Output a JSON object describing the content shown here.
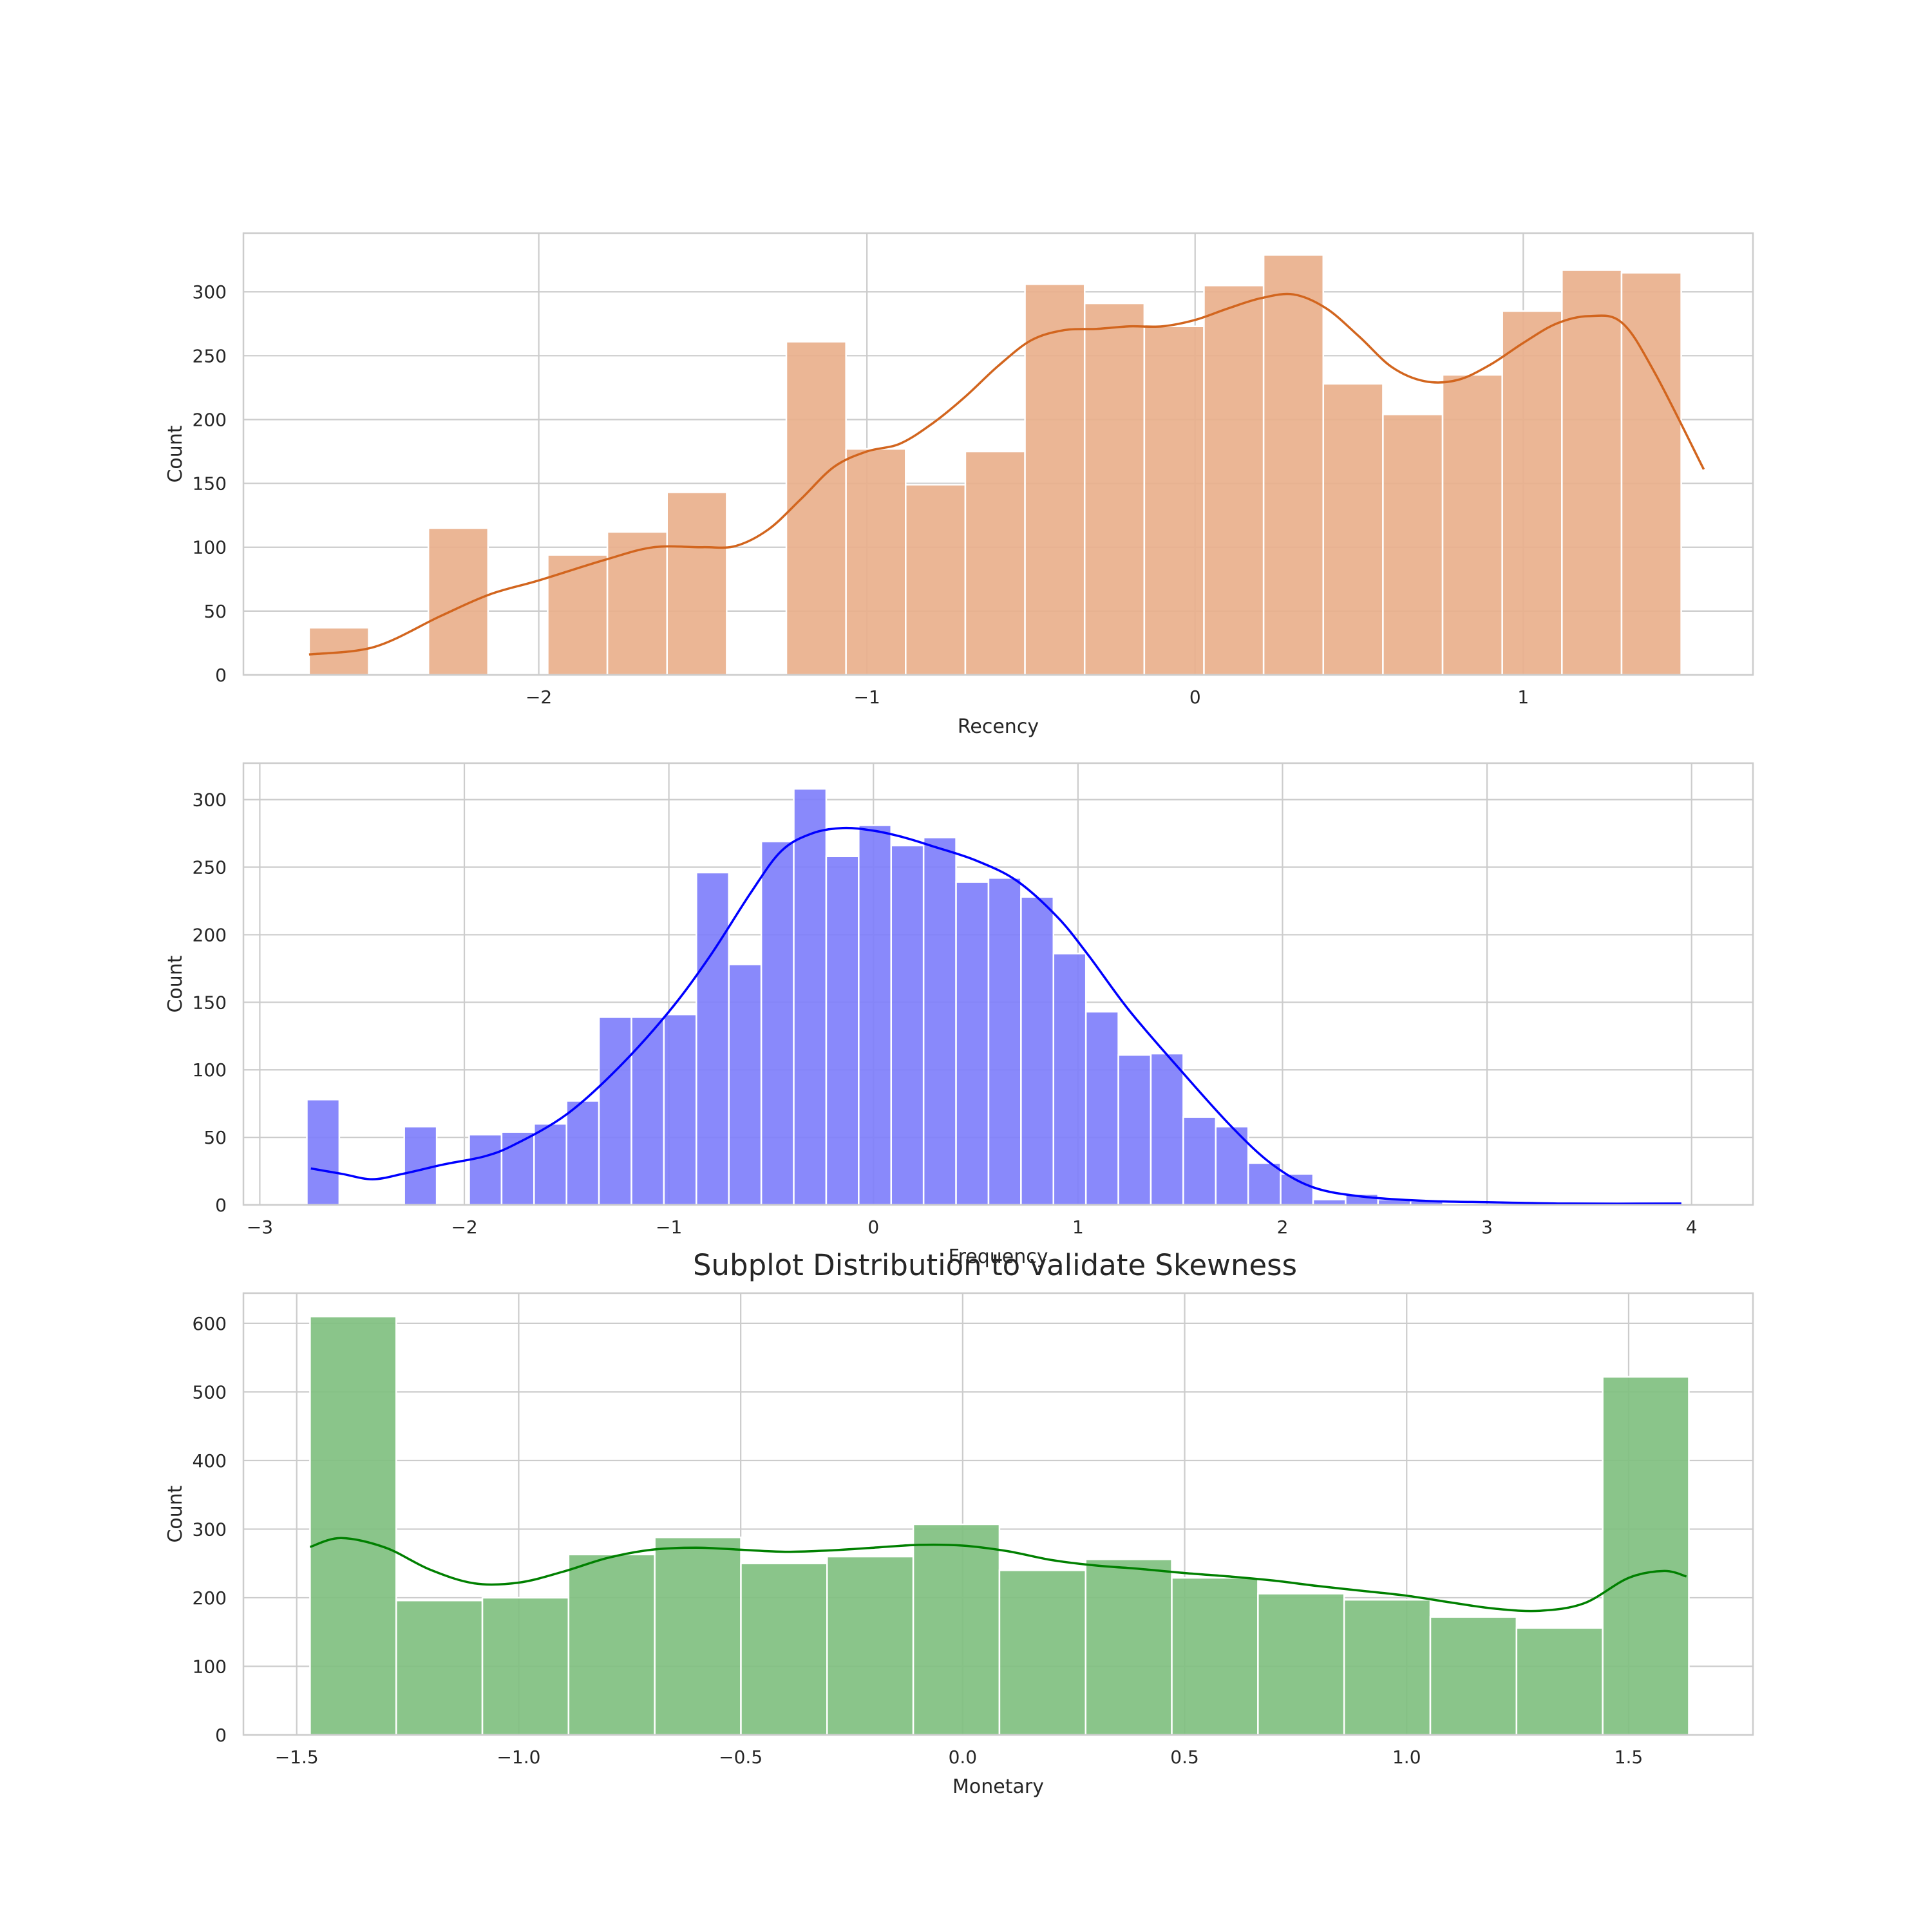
{
  "title": "Subplot Distribution to validate Skewness",
  "chart_data": [
    {
      "type": "bar",
      "subtype": "histogram-with-kde",
      "xlabel": "Recency",
      "ylabel": "Count",
      "color": "#e9b08c",
      "kde_color": "#d2651e",
      "xlim": [
        -2.9,
        1.7
      ],
      "ylim": [
        0,
        346
      ],
      "xticks": [
        -2,
        -1,
        0,
        1
      ],
      "xtick_labels": [
        "−2",
        "−1",
        "0",
        "1"
      ],
      "yticks": [
        0,
        50,
        100,
        150,
        200,
        250,
        300
      ],
      "bin_width": 0.1818,
      "bin_start": -2.7,
      "counts": [
        37,
        0,
        115,
        0,
        94,
        112,
        143,
        0,
        261,
        177,
        149,
        175,
        306,
        291,
        273,
        305,
        329,
        228,
        204,
        235,
        285,
        317,
        315
      ],
      "kde": {
        "x": [
          -2.7,
          -2.5,
          -2.3,
          -2.15,
          -2.0,
          -1.8,
          -1.65,
          -1.5,
          -1.4,
          -1.3,
          -1.2,
          -1.1,
          -1.0,
          -0.9,
          -0.8,
          -0.7,
          -0.6,
          -0.5,
          -0.4,
          -0.3,
          -0.2,
          -0.1,
          0.0,
          0.1,
          0.2,
          0.3,
          0.4,
          0.5,
          0.6,
          0.7,
          0.8,
          0.9,
          1.0,
          1.1,
          1.2,
          1.3,
          1.4,
          1.55
        ],
        "y": [
          16,
          22,
          46,
          63,
          74,
          90,
          100,
          100,
          101,
          114,
          138,
          163,
          175,
          181,
          197,
          218,
          242,
          262,
          270,
          271,
          273,
          273,
          278,
          287,
          295,
          298,
          287,
          265,
          241,
          230,
          231,
          243,
          260,
          275,
          281,
          276,
          237,
          161
        ]
      }
    },
    {
      "type": "bar",
      "subtype": "histogram-with-kde",
      "xlabel": "Frequency",
      "ylabel": "Count",
      "color": "#7f7ffb",
      "kde_color": "#0000ff",
      "xlim": [
        -3.08,
        4.3
      ],
      "ylim": [
        0,
        327
      ],
      "xticks": [
        -3,
        -2,
        -1,
        0,
        1,
        2,
        3,
        4
      ],
      "xtick_labels": [
        "−3",
        "−2",
        "−1",
        "0",
        "1",
        "2",
        "3",
        "4"
      ],
      "yticks": [
        0,
        50,
        100,
        150,
        200,
        250,
        300
      ],
      "bin_width": 0.1587,
      "bin_start": -2.77,
      "counts": [
        78,
        0,
        0,
        58,
        0,
        52,
        54,
        60,
        77,
        139,
        139,
        141,
        246,
        178,
        269,
        308,
        258,
        281,
        266,
        272,
        239,
        242,
        228,
        186,
        143,
        111,
        112,
        65,
        58,
        31,
        23,
        4,
        8,
        4,
        3,
        0,
        0,
        0,
        0,
        0,
        0,
        0,
        0,
        0
      ],
      "kde": {
        "x": [
          -2.75,
          -2.6,
          -2.45,
          -2.3,
          -2.1,
          -1.9,
          -1.75,
          -1.5,
          -1.25,
          -1.0,
          -0.8,
          -0.6,
          -0.45,
          -0.3,
          -0.15,
          0.0,
          0.15,
          0.3,
          0.5,
          0.7,
          0.9,
          1.05,
          1.25,
          1.5,
          1.75,
          1.95,
          2.15,
          2.4,
          2.7,
          3.0,
          3.4,
          3.95
        ],
        "y": [
          27,
          23,
          19,
          23,
          30,
          36,
          45,
          67,
          101,
          143,
          184,
          231,
          262,
          275,
          279,
          277,
          272,
          265,
          255,
          240,
          213,
          185,
          144,
          100,
          58,
          30,
          13,
          6,
          3,
          2,
          1,
          1
        ]
      }
    },
    {
      "type": "bar",
      "subtype": "histogram-with-kde",
      "xlabel": "Monetary",
      "ylabel": "Count",
      "color": "#80c080",
      "kde_color": "#008000",
      "xlim": [
        -1.62,
        1.78
      ],
      "ylim": [
        0,
        644
      ],
      "xticks": [
        -1.5,
        -1.0,
        -0.5,
        0.0,
        0.5,
        1.0,
        1.5
      ],
      "xtick_labels": [
        "−1.5",
        "−1.0",
        "−0.5",
        "0.0",
        "0.5",
        "1.0",
        "1.5"
      ],
      "yticks": [
        0,
        100,
        200,
        300,
        400,
        500,
        600
      ],
      "bin_width": 0.1941,
      "bin_start": -1.47,
      "counts": [
        610,
        196,
        200,
        263,
        288,
        250,
        260,
        307,
        240,
        256,
        229,
        206,
        197,
        172,
        156,
        522
      ],
      "kde": {
        "x": [
          -1.47,
          -1.4,
          -1.3,
          -1.2,
          -1.1,
          -1.0,
          -0.9,
          -0.8,
          -0.7,
          -0.6,
          -0.5,
          -0.4,
          -0.3,
          -0.2,
          -0.1,
          0.0,
          0.1,
          0.2,
          0.3,
          0.4,
          0.5,
          0.6,
          0.7,
          0.8,
          0.9,
          1.0,
          1.1,
          1.2,
          1.3,
          1.4,
          1.5,
          1.58,
          1.63
        ],
        "y": [
          274,
          287,
          273,
          241,
          221,
          222,
          238,
          258,
          270,
          273,
          270,
          267,
          269,
          273,
          277,
          276,
          268,
          255,
          247,
          242,
          236,
          231,
          225,
          217,
          210,
          203,
          193,
          184,
          181,
          192,
          229,
          239,
          231
        ]
      }
    }
  ]
}
